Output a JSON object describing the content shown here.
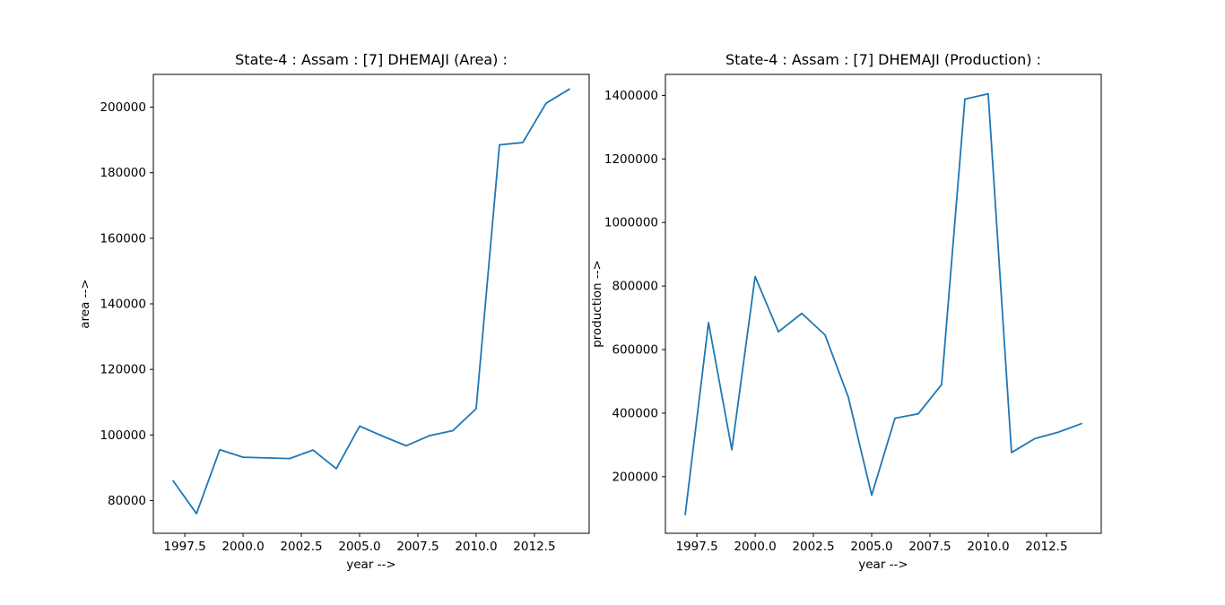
{
  "figure": {
    "background": "#ffffff",
    "text_color": "#000000",
    "line_color": "#1f77b4"
  },
  "chart_data": [
    {
      "type": "line",
      "title": "State-4 : Assam : [7] DHEMAJI (Area) :",
      "xlabel": "year -->",
      "ylabel": "area -->",
      "series_color": "#1f77b4",
      "x": [
        1997,
        1998,
        1999,
        2000,
        2001,
        2002,
        2003,
        2004,
        2005,
        2006,
        2007,
        2008,
        2009,
        2010,
        2011,
        2012,
        2013,
        2014
      ],
      "y": [
        86000,
        76000,
        95500,
        93200,
        93000,
        92800,
        95400,
        89700,
        102700,
        99600,
        96700,
        99800,
        101300,
        108000,
        188500,
        189200,
        201200,
        205500
      ],
      "xlim": [
        1996.15,
        2014.85
      ],
      "ylim": [
        70000,
        210000
      ],
      "xticks": [
        1997.5,
        2000.0,
        2002.5,
        2005.0,
        2007.5,
        2010.0,
        2012.5
      ],
      "xtick_labels": [
        "1997.5",
        "2000.0",
        "2002.5",
        "2005.0",
        "2007.5",
        "2010.0",
        "2012.5"
      ],
      "yticks": [
        80000,
        100000,
        120000,
        140000,
        160000,
        180000,
        200000
      ],
      "ytick_labels": [
        "80000",
        "100000",
        "120000",
        "140000",
        "160000",
        "180000",
        "200000"
      ],
      "grid": false,
      "legend": "none"
    },
    {
      "type": "line",
      "title": "State-4 : Assam : [7] DHEMAJI (Production) :",
      "xlabel": "year -->",
      "ylabel": "production -->",
      "series_color": "#1f77b4",
      "x": [
        1997,
        1998,
        1999,
        2000,
        2001,
        2002,
        2003,
        2004,
        2005,
        2006,
        2007,
        2008,
        2009,
        2010,
        2011,
        2012,
        2013,
        2014
      ],
      "y": [
        81000,
        685000,
        285000,
        830000,
        656000,
        714000,
        646000,
        450000,
        142000,
        384000,
        398000,
        490000,
        1388000,
        1405000,
        276000,
        320000,
        340000,
        367000
      ],
      "xlim": [
        1996.15,
        2014.85
      ],
      "ylim": [
        22000,
        1466000
      ],
      "xticks": [
        1997.5,
        2000.0,
        2002.5,
        2005.0,
        2007.5,
        2010.0,
        2012.5
      ],
      "xtick_labels": [
        "1997.5",
        "2000.0",
        "2002.5",
        "2005.0",
        "2007.5",
        "2010.0",
        "2012.5"
      ],
      "yticks": [
        200000,
        400000,
        600000,
        800000,
        1000000,
        1200000,
        1400000
      ],
      "ytick_labels": [
        "200000",
        "400000",
        "600000",
        "800000",
        "1000000",
        "1200000",
        "1400000"
      ],
      "grid": false,
      "legend": "none"
    }
  ]
}
